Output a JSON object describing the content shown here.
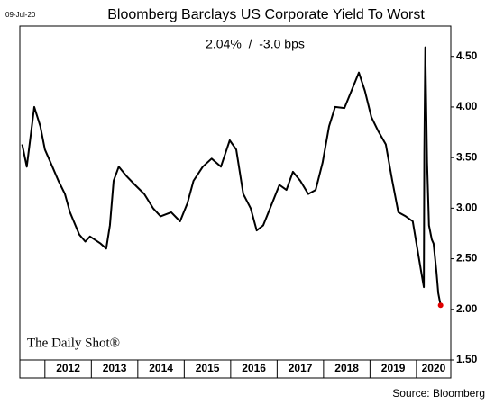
{
  "chart_data": {
    "type": "line",
    "date": "09-Jul-20",
    "title": "Bloomberg Barclays US Corporate Yield To Worst",
    "subtitle": "2.04%  /  -3.0 bps",
    "watermark": "The Daily Shot®",
    "source": "Source: Bloomberg",
    "color": "#000000",
    "last_point_color": "#e00000",
    "x": [
      2011.51,
      2011.61,
      2011.77,
      2011.9,
      2012.0,
      2012.16,
      2012.29,
      2012.43,
      2012.54,
      2012.74,
      2012.87,
      2012.97,
      2013.07,
      2013.2,
      2013.32,
      2013.4,
      2013.48,
      2013.59,
      2013.75,
      2013.94,
      2014.14,
      2014.33,
      2014.49,
      2014.72,
      2014.91,
      2015.07,
      2015.2,
      2015.4,
      2015.59,
      2015.79,
      2015.98,
      2016.12,
      2016.27,
      2016.43,
      2016.56,
      2016.7,
      2016.85,
      2017.05,
      2017.2,
      2017.34,
      2017.5,
      2017.67,
      2017.83,
      2017.98,
      2018.12,
      2018.25,
      2018.45,
      2018.6,
      2018.76,
      2018.89,
      2019.03,
      2019.18,
      2019.34,
      2019.48,
      2019.61,
      2019.77,
      2019.92,
      2020.0,
      2020.1,
      2020.16,
      2020.17,
      2020.19,
      2020.23,
      2020.27,
      2020.33,
      2020.37,
      2020.43,
      2020.47,
      2020.52
    ],
    "values": [
      3.63,
      3.41,
      4.0,
      3.81,
      3.58,
      3.41,
      3.27,
      3.14,
      2.96,
      2.74,
      2.67,
      2.72,
      2.69,
      2.65,
      2.6,
      2.83,
      3.27,
      3.41,
      3.32,
      3.23,
      3.14,
      3.0,
      2.92,
      2.96,
      2.87,
      3.05,
      3.27,
      3.41,
      3.49,
      3.41,
      3.67,
      3.58,
      3.14,
      3.0,
      2.78,
      2.83,
      3.0,
      3.23,
      3.18,
      3.36,
      3.27,
      3.14,
      3.18,
      3.45,
      3.81,
      4.0,
      3.99,
      4.16,
      4.34,
      4.16,
      3.9,
      3.76,
      3.63,
      3.27,
      2.96,
      2.92,
      2.87,
      2.65,
      2.38,
      2.22,
      3.54,
      4.59,
      3.45,
      2.83,
      2.69,
      2.65,
      2.38,
      2.16,
      2.04
    ],
    "xlim": [
      2011.46,
      2020.74
    ],
    "xticks": [
      {
        "value": 2012,
        "label": "2012"
      },
      {
        "value": 2013,
        "label": "2013"
      },
      {
        "value": 2014,
        "label": "2014"
      },
      {
        "value": 2015,
        "label": "2015"
      },
      {
        "value": 2016,
        "label": "2016"
      },
      {
        "value": 2017,
        "label": "2017"
      },
      {
        "value": 2018,
        "label": "2018"
      },
      {
        "value": 2019,
        "label": "2019"
      },
      {
        "value": 2020,
        "label": "2020"
      }
    ],
    "ylim": [
      1.5,
      4.8
    ],
    "yticks": [
      {
        "value": 1.5,
        "label": "1.50"
      },
      {
        "value": 2,
        "label": "2.00"
      },
      {
        "value": 2.5,
        "label": "2.50"
      },
      {
        "value": 3,
        "label": "3.00"
      },
      {
        "value": 3.5,
        "label": "3.50"
      },
      {
        "value": 4,
        "label": "4.00"
      },
      {
        "value": 4.5,
        "label": "4.50"
      }
    ]
  }
}
